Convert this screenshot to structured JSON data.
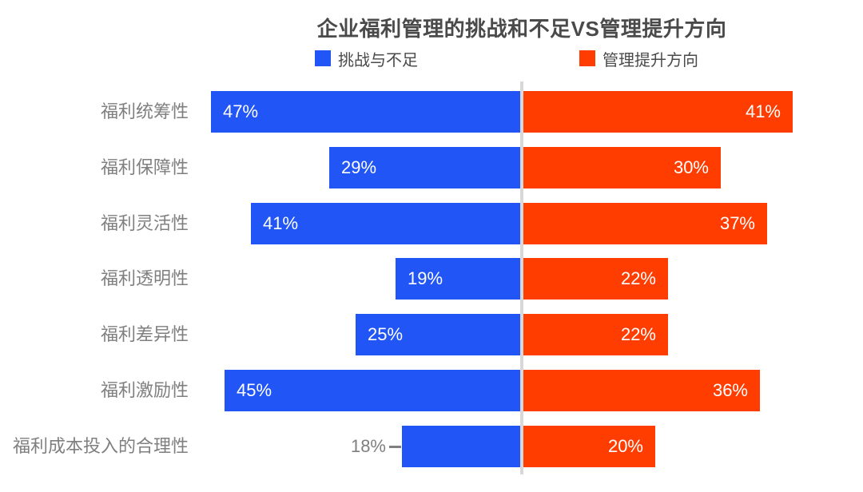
{
  "title": "企业福利管理的挑战和不足VS管理提升方向",
  "legend": {
    "left": {
      "label": "挑战与不足",
      "color": "#2155F5"
    },
    "right": {
      "label": "管理提升方向",
      "color": "#FF3D00"
    }
  },
  "chart_data": {
    "type": "bar",
    "variant": "diverging-horizontal",
    "title": "企业福利管理的挑战和不足VS管理提升方向",
    "categories": [
      "福利统筹性",
      "福利保障性",
      "福利灵活性",
      "福利透明性",
      "福利差异性",
      "福利激励性",
      "福利成本投入的合理性"
    ],
    "series": [
      {
        "name": "挑战与不足",
        "side": "left",
        "color": "#2155F5",
        "values": [
          47,
          29,
          41,
          19,
          25,
          45,
          18
        ]
      },
      {
        "name": "管理提升方向",
        "side": "right",
        "color": "#FF3D00",
        "values": [
          41,
          30,
          37,
          22,
          22,
          36,
          20
        ]
      }
    ],
    "value_suffix": "%",
    "value_labels": "inside-bars",
    "outside_value_label": {
      "series_index": 0,
      "row_index": 6
    },
    "legend_position": "top",
    "grid": false,
    "axis_ticks": "none"
  },
  "colors": {
    "background": "#FFFFFF",
    "title_text": "#4A4A4A",
    "legend_text": "#4A4A4A",
    "category_text": "#7F7F7F",
    "value_text_inside": "#FFFFFF",
    "value_text_outside": "#7F7F7F",
    "center_divider": "#D8D8D8"
  }
}
